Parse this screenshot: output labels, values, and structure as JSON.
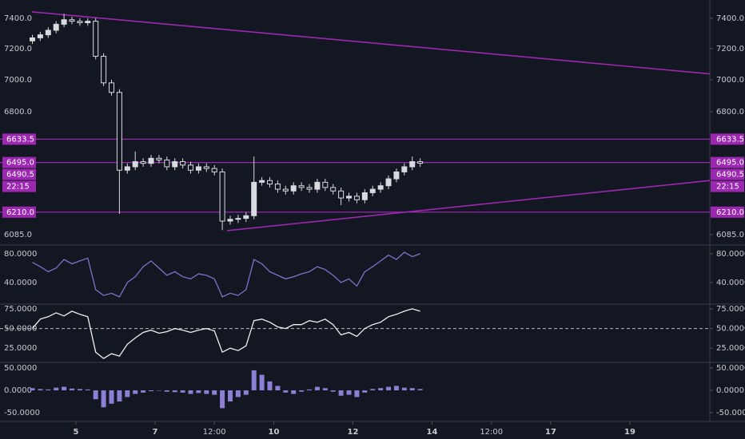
{
  "chart_data": [
    {
      "type": "candlestick",
      "x": [
        3.9,
        4.1,
        4.3,
        4.5,
        4.7,
        4.9,
        5.1,
        5.3,
        5.5,
        5.7,
        5.9,
        6.1,
        6.3,
        6.5,
        6.7,
        6.9,
        7.1,
        7.3,
        7.5,
        7.7,
        7.9,
        8.1,
        8.3,
        8.5,
        8.7,
        8.9,
        9.1,
        9.3,
        9.5,
        9.7,
        9.9,
        10.1,
        10.3,
        10.5,
        10.7,
        10.9,
        11.1,
        11.3,
        11.5,
        11.7,
        11.9,
        12.1,
        12.3,
        12.5,
        12.7,
        12.9,
        13.1,
        13.3,
        13.5,
        13.7
      ],
      "open": [
        7250,
        7270,
        7290,
        7320,
        7360,
        7390,
        7380,
        7370,
        7380,
        7150,
        6980,
        6920,
        6450,
        6470,
        6500,
        6490,
        6520,
        6510,
        6470,
        6500,
        6480,
        6450,
        6470,
        6460,
        6440,
        6160,
        6170,
        6175,
        6190,
        6380,
        6390,
        6370,
        6340,
        6330,
        6360,
        6350,
        6340,
        6380,
        6350,
        6330,
        6290,
        6300,
        6280,
        6320,
        6340,
        6360,
        6400,
        6440,
        6470,
        6500
      ],
      "high": [
        7290,
        7310,
        7340,
        7380,
        7430,
        7410,
        7400,
        7400,
        7400,
        7170,
        7000,
        6940,
        6490,
        6560,
        6520,
        6540,
        6540,
        6530,
        6520,
        6520,
        6500,
        6490,
        6490,
        6480,
        6460,
        6190,
        6195,
        6210,
        6530,
        6410,
        6410,
        6390,
        6360,
        6380,
        6380,
        6370,
        6400,
        6400,
        6370,
        6350,
        6320,
        6320,
        6340,
        6360,
        6380,
        6420,
        6460,
        6490,
        6530,
        6520
      ],
      "low": [
        7230,
        7250,
        7270,
        7300,
        7340,
        7360,
        7350,
        7350,
        7130,
        6960,
        6900,
        6200,
        6430,
        6450,
        6470,
        6470,
        6490,
        6450,
        6450,
        6460,
        6430,
        6430,
        6440,
        6420,
        6110,
        6140,
        6150,
        6155,
        6170,
        6360,
        6350,
        6320,
        6310,
        6310,
        6330,
        6320,
        6320,
        6330,
        6310,
        6250,
        6270,
        6260,
        6260,
        6300,
        6320,
        6340,
        6380,
        6420,
        6450,
        6470
      ],
      "close": [
        7270,
        7290,
        7320,
        7360,
        7390,
        7380,
        7370,
        7380,
        7150,
        6980,
        6920,
        6450,
        6470,
        6500,
        6490,
        6520,
        6510,
        6470,
        6500,
        6480,
        6450,
        6470,
        6460,
        6440,
        6160,
        6170,
        6175,
        6190,
        6380,
        6390,
        6370,
        6340,
        6330,
        6360,
        6350,
        6340,
        6380,
        6350,
        6330,
        6290,
        6300,
        6280,
        6320,
        6340,
        6360,
        6400,
        6440,
        6470,
        6500,
        6490.5
      ],
      "color": "#d9d9e0",
      "log": true,
      "ylim": [
        6028,
        7496
      ],
      "yticks": [
        {
          "value": 7400,
          "label": "7400.0"
        },
        {
          "value": 7200,
          "label": "7200.0"
        },
        {
          "value": 7000,
          "label": "7000.0"
        },
        {
          "value": 6800,
          "label": "6800.0"
        },
        {
          "value": 6085,
          "label": "6085.0"
        }
      ],
      "xlim": [
        3.89,
        21.02
      ],
      "xticks": [
        5,
        7,
        {
          "value": 8.5,
          "label": "12:00"
        },
        10,
        12,
        14,
        {
          "value": 15.5,
          "label": "12:00"
        },
        17,
        19
      ],
      "hlines": [
        {
          "value": 6633.5,
          "label": "6633.5"
        },
        {
          "value": 6495,
          "label": "6495.0"
        },
        {
          "value": 6210,
          "label": "6210.0"
        }
      ],
      "last_price": {
        "value": 6490.5,
        "label": "6490.5"
      },
      "countdown": "22:15",
      "line_color": "#9c27b0",
      "trendlines": [
        {
          "x": [
            3.89,
            21.02
          ],
          "y": [
            7443,
            7037
          ]
        },
        {
          "x": [
            8.82,
            21.02
          ],
          "y": [
            6107,
            6390
          ]
        }
      ]
    },
    {
      "type": "line",
      "values": [
        68,
        62,
        55,
        60,
        72,
        66,
        70,
        74,
        30,
        22,
        25,
        20,
        40,
        48,
        62,
        70,
        60,
        50,
        55,
        48,
        45,
        52,
        50,
        45,
        20,
        25,
        22,
        30,
        72,
        66,
        55,
        50,
        45,
        48,
        52,
        55,
        62,
        58,
        50,
        40,
        45,
        35,
        55,
        62,
        70,
        78,
        72,
        82,
        76,
        80
      ],
      "color": "#7b74c9",
      "ylim": [
        11,
        91
      ],
      "yticks": [
        {
          "value": 80,
          "label": "80.0000"
        },
        {
          "value": 40,
          "label": "40.0000"
        }
      ]
    },
    {
      "type": "line",
      "values": [
        50,
        62,
        65,
        70,
        66,
        72,
        68,
        65,
        20,
        12,
        18,
        15,
        30,
        38,
        45,
        48,
        44,
        46,
        50,
        48,
        45,
        48,
        50,
        47,
        20,
        25,
        22,
        28,
        60,
        62,
        58,
        52,
        50,
        55,
        55,
        60,
        58,
        62,
        55,
        42,
        45,
        40,
        50,
        55,
        58,
        65,
        68,
        72,
        75,
        72
      ],
      "color": "#f0f0f0",
      "ylim": [
        8,
        80
      ],
      "yticks": [
        {
          "value": 75,
          "label": "75.0000"
        },
        {
          "value": 50,
          "label": "50.0000"
        },
        {
          "value": 25,
          "label": "25.0000"
        }
      ],
      "reference_line": 50
    },
    {
      "type": "bar",
      "values": [
        5,
        3,
        2,
        6,
        8,
        4,
        3,
        2,
        -20,
        -38,
        -30,
        -25,
        -15,
        -8,
        -5,
        -2,
        0,
        -3,
        -4,
        -5,
        -8,
        -6,
        -8,
        -10,
        -40,
        -25,
        -15,
        -10,
        45,
        35,
        20,
        10,
        -5,
        -8,
        -3,
        2,
        8,
        5,
        -3,
        -12,
        -10,
        -15,
        -5,
        3,
        5,
        8,
        10,
        6,
        5,
        3
      ],
      "color": "#8e7fd6",
      "ylim": [
        -68,
        61
      ],
      "yticks": [
        {
          "value": 50,
          "label": "50.0000"
        },
        {
          "value": 0,
          "label": "0.0000"
        },
        {
          "value": -50,
          "label": "-50.0000"
        }
      ]
    }
  ]
}
